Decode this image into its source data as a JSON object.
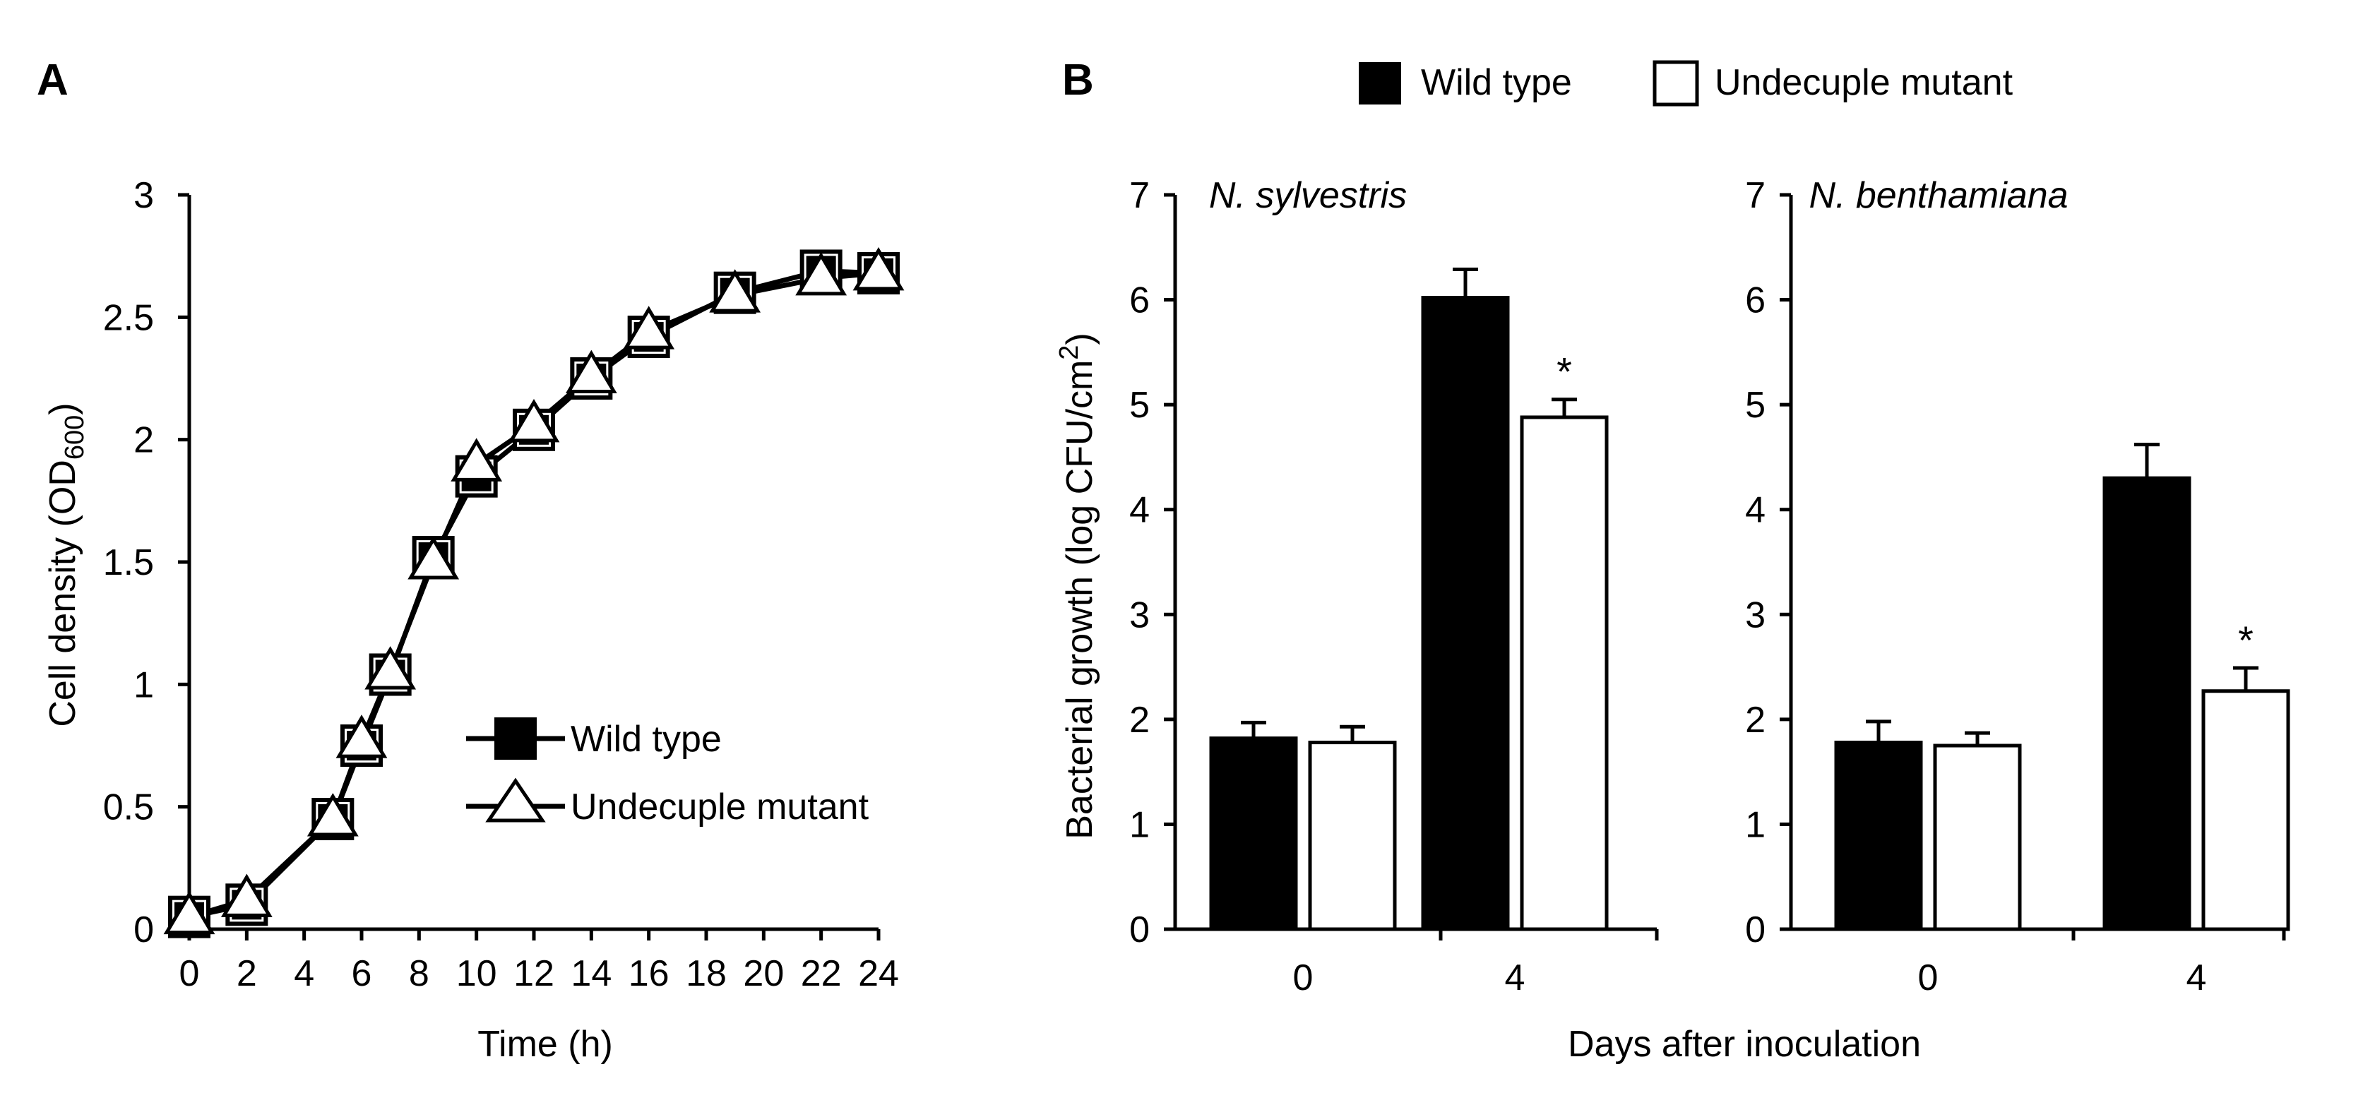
{
  "panels": {
    "A": {
      "label": "A"
    },
    "B": {
      "label": "B"
    }
  },
  "legend_B": {
    "wild_type": "Wild type",
    "mutant": "Undecuple  mutant"
  },
  "chart_data": [
    {
      "type": "line",
      "panel": "A",
      "xlabel": "Time  (h)",
      "ylabel_main": "Cell density  (OD",
      "ylabel_sub": "600",
      "ylabel_end": ")",
      "xlim": [
        0,
        24
      ],
      "ylim": [
        0,
        3
      ],
      "xticks": [
        "0",
        "2",
        "4",
        "6",
        "8",
        "10",
        "12",
        "14",
        "16",
        "18",
        "20",
        "22",
        "24"
      ],
      "yticks": [
        "0",
        "0.5",
        "1",
        "1.5",
        "2",
        "2.5",
        "3"
      ],
      "legend": [
        "Wild type",
        "Undecuple  mutant"
      ],
      "series": [
        {
          "name": "Wild type",
          "marker": "square-filled",
          "x": [
            0,
            2,
            5,
            6,
            7,
            8.5,
            10,
            12,
            14,
            16,
            19,
            22,
            24
          ],
          "y": [
            0.05,
            0.1,
            0.45,
            0.75,
            1.04,
            1.52,
            1.85,
            2.04,
            2.25,
            2.42,
            2.6,
            2.69,
            2.68
          ]
        },
        {
          "name": "Undecuple  mutant",
          "marker": "triangle-open",
          "x": [
            0,
            2,
            5,
            6,
            7,
            8.5,
            10,
            12,
            14,
            16,
            19,
            22,
            24
          ],
          "y": [
            0.05,
            0.12,
            0.45,
            0.77,
            1.05,
            1.5,
            1.9,
            2.06,
            2.26,
            2.44,
            2.59,
            2.66,
            2.68
          ]
        }
      ]
    },
    {
      "type": "bar",
      "panel": "B",
      "title": "N. sylvestris",
      "ylabel_main": "Bacterial growth  (log CFU/cm",
      "ylabel_sup": "2",
      "ylabel_end": ")",
      "categories": [
        "0",
        "4"
      ],
      "ylim": [
        0,
        7
      ],
      "yticks": [
        "0",
        "1",
        "2",
        "3",
        "4",
        "5",
        "6",
        "7"
      ],
      "series": [
        {
          "name": "Wild type",
          "values": [
            1.82,
            6.02
          ],
          "errors": [
            0.15,
            0.27
          ]
        },
        {
          "name": "Undecuple  mutant",
          "values": [
            1.78,
            4.88
          ],
          "errors": [
            0.15,
            0.17
          ]
        }
      ],
      "significance": [
        {
          "category": "4",
          "series": "Undecuple  mutant",
          "mark": "*"
        }
      ]
    },
    {
      "type": "bar",
      "panel": "B",
      "title": "N. benthamiana",
      "categories": [
        "0",
        "4"
      ],
      "ylim": [
        0,
        7
      ],
      "yticks": [
        "0",
        "1",
        "2",
        "3",
        "4",
        "5",
        "6",
        "7"
      ],
      "series": [
        {
          "name": "Wild type",
          "values": [
            1.78,
            4.3
          ],
          "errors": [
            0.2,
            0.32
          ]
        },
        {
          "name": "Undecuple  mutant",
          "values": [
            1.75,
            2.27
          ],
          "errors": [
            0.12,
            0.22
          ]
        }
      ],
      "significance": [
        {
          "category": "4",
          "series": "Undecuple  mutant",
          "mark": "*"
        }
      ]
    }
  ],
  "shared_xlabel_B": "Days after inoculation"
}
